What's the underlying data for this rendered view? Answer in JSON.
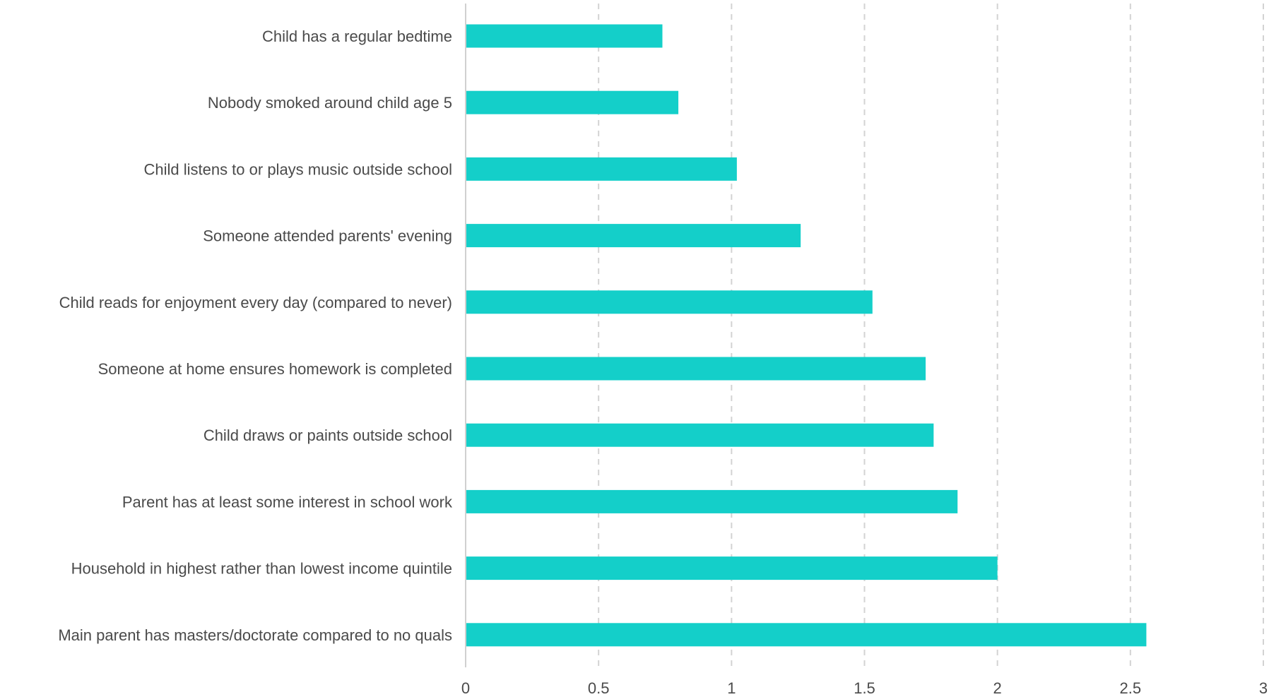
{
  "chart_data": {
    "type": "bar",
    "orientation": "horizontal",
    "categories": [
      "Child has a regular bedtime",
      "Nobody smoked around child age 5",
      "Child listens to or plays music outside school",
      "Someone attended parents' evening",
      "Child reads for enjoyment every day (compared to never)",
      "Someone at home ensures homework is completed",
      "Child draws or paints outside school",
      "Parent has at least some interest in school work",
      "Household in highest rather than lowest income quintile",
      "Main parent has masters/doctorate compared to no quals"
    ],
    "values": [
      0.74,
      0.8,
      1.02,
      1.26,
      1.53,
      1.73,
      1.76,
      1.85,
      2.0,
      2.56
    ],
    "xlim": [
      0,
      3
    ],
    "xticks": [
      0,
      0.5,
      1,
      1.5,
      2,
      2.5,
      3
    ],
    "xtick_labels": [
      "0",
      "0.5",
      "1",
      "1.5",
      "2",
      "2.5",
      "3"
    ],
    "title": "",
    "xlabel": "",
    "ylabel": "",
    "grid": true,
    "legend": "none",
    "bar_color": "#14cfc9",
    "grid_color": "#d3d3d3",
    "text_color": "#4a4a4a"
  }
}
